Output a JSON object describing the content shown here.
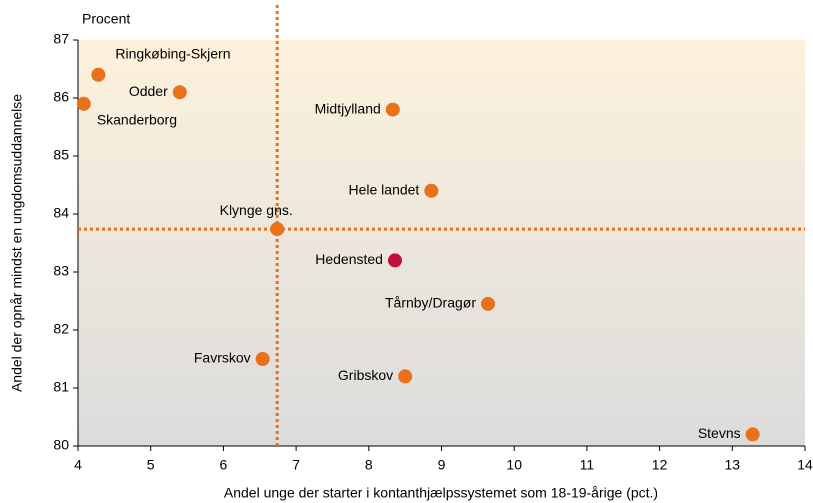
{
  "chart_data": {
    "type": "scatter",
    "y_unit_label": "Procent",
    "xlabel": "Andel unge der starter i kontanthjælpssystemet som 18-19-årige (pct.)",
    "ylabel": "Andel der opnår mindst en ungdomsuddannelse",
    "labels": [
      "Ringkøbing-Skjern",
      "Odder",
      "Skanderborg",
      "Midtjylland",
      "Hele landet",
      "Klynge gns.",
      "Hedensted",
      "Tårnby/Dragør",
      "Favrskov",
      "Gribskov",
      "Stevns"
    ],
    "x": [
      4.28,
      5.4,
      4.08,
      8.33,
      8.86,
      6.74,
      8.36,
      9.64,
      6.54,
      8.5,
      13.28
    ],
    "values": [
      86.4,
      86.1,
      85.9,
      85.8,
      84.4,
      83.74,
      83.2,
      82.45,
      81.5,
      81.2,
      80.2
    ],
    "colors": [
      "#e8711a",
      "#e8711a",
      "#e8711a",
      "#e8711a",
      "#e8711a",
      "#e8711a",
      "#c0103a",
      "#e8711a",
      "#e8711a",
      "#e8711a",
      "#e8711a"
    ],
    "reference_lines": {
      "x": 6.74,
      "y": 83.74,
      "color": "#e8711a"
    },
    "xlim": [
      4,
      14
    ],
    "ylim": [
      80,
      87
    ],
    "xticks": [
      4,
      5,
      6,
      7,
      8,
      9,
      10,
      11,
      12,
      13,
      14
    ],
    "yticks": [
      80,
      81,
      82,
      83,
      84,
      85,
      86,
      87
    ]
  }
}
